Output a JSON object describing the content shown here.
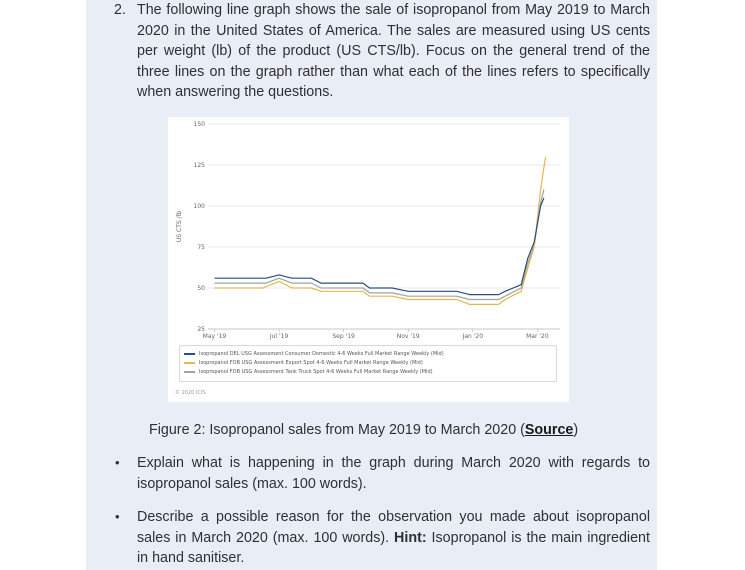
{
  "question": {
    "number": "2.",
    "text": "The following line graph shows the sale of isopropanol from May 2019 to March 2020 in the United States of America. The sales are measured using US cents per weight (lb) of the product (US CTS/lb). Focus on the general trend of the three lines on the graph rather than what each of the lines refers to specifically when answering the questions."
  },
  "chart_data": {
    "type": "line",
    "ylabel": "US CTS /lb",
    "ylim": [
      25,
      150
    ],
    "y_ticks": [
      25,
      50,
      75,
      100,
      125,
      150
    ],
    "x_ticks": [
      "May '19",
      "Jul '19",
      "Sep '19",
      "Nov '19",
      "Jan '20",
      "Mar '20"
    ],
    "x_tick_index": [
      0,
      2,
      4,
      6,
      8,
      10
    ],
    "xlim": [
      -0.2,
      10.7
    ],
    "grid": true,
    "legend_position": "bottom",
    "series": [
      {
        "name": "Isopropanol DEL USG Assessment Consumer Domestic 4-6 Weeks Full Market Range Weekly (Mid)",
        "color": "#2d4f7c",
        "points": [
          [
            0,
            56
          ],
          [
            0.8,
            56
          ],
          [
            1.6,
            56
          ],
          [
            2.0,
            58
          ],
          [
            2.4,
            56
          ],
          [
            3.0,
            56
          ],
          [
            3.3,
            53
          ],
          [
            4.0,
            53
          ],
          [
            4.6,
            53
          ],
          [
            4.8,
            50
          ],
          [
            5.5,
            50
          ],
          [
            6.0,
            48
          ],
          [
            7.0,
            48
          ],
          [
            7.5,
            48
          ],
          [
            7.9,
            46
          ],
          [
            8.8,
            46
          ],
          [
            9.0,
            48
          ],
          [
            9.5,
            52
          ],
          [
            9.7,
            68
          ],
          [
            9.9,
            78
          ],
          [
            10.1,
            100
          ],
          [
            10.2,
            105
          ]
        ]
      },
      {
        "name": "Isopropanol FOB USG Assessment Export Spot 4-6 Weeks Full Market Range Weekly (Mid)",
        "color": "#e7b84a",
        "points": [
          [
            0,
            50
          ],
          [
            1.0,
            50
          ],
          [
            1.5,
            50
          ],
          [
            2.0,
            54
          ],
          [
            2.4,
            50
          ],
          [
            3.0,
            50
          ],
          [
            3.3,
            48
          ],
          [
            4.0,
            48
          ],
          [
            4.6,
            48
          ],
          [
            4.8,
            45
          ],
          [
            5.5,
            45
          ],
          [
            6.0,
            43
          ],
          [
            7.0,
            43
          ],
          [
            7.5,
            43
          ],
          [
            7.9,
            40
          ],
          [
            8.8,
            40
          ],
          [
            9.0,
            43
          ],
          [
            9.5,
            48
          ],
          [
            9.7,
            62
          ],
          [
            9.9,
            75
          ],
          [
            10.1,
            110
          ],
          [
            10.25,
            130
          ]
        ]
      },
      {
        "name": "Isopropanol FOB USG Assessment Tank Truck Spot 4-6 Weeks Full Market Range Weekly (Mid)",
        "color": "#9ea3a8",
        "points": [
          [
            0,
            53
          ],
          [
            1.0,
            53
          ],
          [
            1.6,
            53
          ],
          [
            2.0,
            56
          ],
          [
            2.4,
            53
          ],
          [
            3.0,
            53
          ],
          [
            3.3,
            50
          ],
          [
            4.0,
            50
          ],
          [
            4.6,
            50
          ],
          [
            4.8,
            47
          ],
          [
            5.5,
            47
          ],
          [
            6.0,
            45
          ],
          [
            7.0,
            45
          ],
          [
            7.5,
            45
          ],
          [
            7.9,
            43
          ],
          [
            8.8,
            43
          ],
          [
            9.0,
            45
          ],
          [
            9.5,
            50
          ],
          [
            9.7,
            65
          ],
          [
            9.9,
            76
          ],
          [
            10.1,
            102
          ],
          [
            10.2,
            110
          ]
        ]
      }
    ]
  },
  "chart_copyright": "© 2020 ICIS",
  "caption": {
    "prefix": "Figure 2: Isopropanol sales from May 2019 to March 2020 (",
    "link": "Source",
    "suffix": ")"
  },
  "bullets": [
    {
      "marker": "•",
      "text": "Explain what is happening in the graph during March 2020 with regards to isopropanol sales (max. 100 words)."
    },
    {
      "marker": "•",
      "text_before": "Describe a possible reason for the observation you made about isopropanol sales in March 2020 (max. 100 words).",
      "hint_label": "Hint:",
      "text_after": "Isopropanol is the main ingredient in hand sanitiser."
    }
  ]
}
